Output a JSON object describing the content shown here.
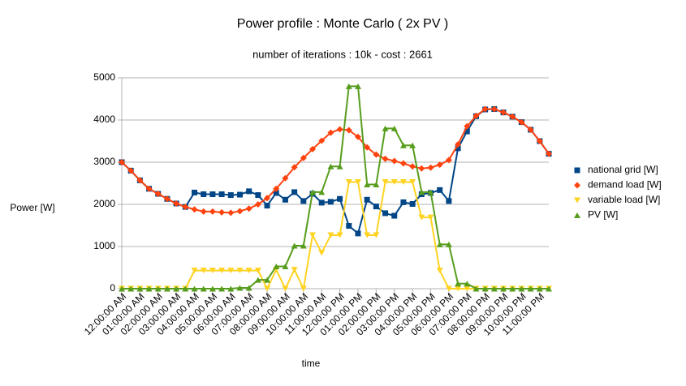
{
  "chart_data": {
    "type": "line",
    "title": "Power profile : Monte Carlo ( 2x PV )",
    "subtitle": "number of iterations : 10k - cost : 2661",
    "y_label": "Power [W]",
    "x_label": "time",
    "categories": [
      "12:00:00 AM",
      null,
      "01:00:00 AM",
      null,
      "02:00:00 AM",
      null,
      "03:00:00 AM",
      null,
      "04:00:00 AM",
      null,
      "05:00:00 AM",
      null,
      "06:00:00 AM",
      null,
      "07:00:00 AM",
      null,
      "08:00:00 AM",
      null,
      "09:00:00 AM",
      null,
      "10:00:00 AM",
      null,
      "11:00:00 AM",
      null,
      "12:00:00 PM",
      null,
      "01:00:00 PM",
      null,
      "02:00:00 PM",
      null,
      "03:00:00 PM",
      null,
      "04:00:00 PM",
      null,
      "05:00:00 PM",
      null,
      "06:00:00 PM",
      null,
      "07:00:00 PM",
      null,
      "08:00:00 PM",
      null,
      "09:00:00 PM",
      null,
      "10:00:00 PM",
      null,
      "11:00:00 PM",
      null
    ],
    "series": [
      {
        "name": "national grid [W]",
        "color": "#004586",
        "marker": "square",
        "values": [
          3000,
          2800,
          2570,
          2370,
          2250,
          2130,
          2020,
          1940,
          2280,
          2240,
          2240,
          2240,
          2220,
          2230,
          2310,
          2220,
          1970,
          2270,
          2110,
          2290,
          2080,
          2250,
          2040,
          2060,
          2130,
          1490,
          1310,
          2110,
          1950,
          1790,
          1730,
          2050,
          2010,
          2240,
          2270,
          2340,
          2080,
          3330,
          3730,
          4090,
          4250,
          4260,
          4180,
          4080,
          3950,
          3770,
          3500,
          3200
        ]
      },
      {
        "name": "demand load [W]",
        "color": "#ff420e",
        "marker": "diamond",
        "values": [
          3000,
          2800,
          2570,
          2370,
          2250,
          2130,
          2020,
          1940,
          1880,
          1830,
          1830,
          1810,
          1800,
          1840,
          1900,
          2000,
          2150,
          2370,
          2620,
          2880,
          3100,
          3310,
          3510,
          3700,
          3780,
          3760,
          3600,
          3350,
          3180,
          3080,
          3030,
          2970,
          2900,
          2850,
          2870,
          2940,
          3050,
          3420,
          3850,
          4100,
          4260,
          4260,
          4180,
          4080,
          3950,
          3770,
          3500,
          3200
        ]
      },
      {
        "name": "variable load [W]",
        "color": "#ffd320",
        "marker": "triangle-down",
        "values": [
          0,
          0,
          0,
          0,
          0,
          0,
          0,
          0,
          430,
          430,
          430,
          430,
          430,
          430,
          430,
          430,
          0,
          450,
          0,
          450,
          0,
          1270,
          850,
          1270,
          1270,
          2530,
          2530,
          1270,
          1270,
          2530,
          2530,
          2530,
          2530,
          1690,
          1690,
          430,
          0,
          0,
          0,
          0,
          0,
          0,
          0,
          0,
          0,
          0,
          0,
          0
        ]
      },
      {
        "name": "PV [W]",
        "color": "#579d1c",
        "marker": "triangle-up",
        "values": [
          0,
          0,
          0,
          0,
          0,
          0,
          0,
          0,
          0,
          0,
          0,
          0,
          0,
          20,
          20,
          210,
          210,
          530,
          530,
          1020,
          1020,
          2290,
          2290,
          2900,
          2900,
          4800,
          4800,
          2470,
          2470,
          3800,
          3800,
          3400,
          3400,
          2290,
          2290,
          1050,
          1050,
          120,
          120,
          0,
          0,
          0,
          0,
          0,
          0,
          0,
          0,
          0
        ]
      }
    ],
    "ylim": [
      0,
      5000
    ],
    "yticks": [
      0,
      1000,
      2000,
      3000,
      4000,
      5000
    ],
    "grid": true,
    "legend": "right"
  }
}
